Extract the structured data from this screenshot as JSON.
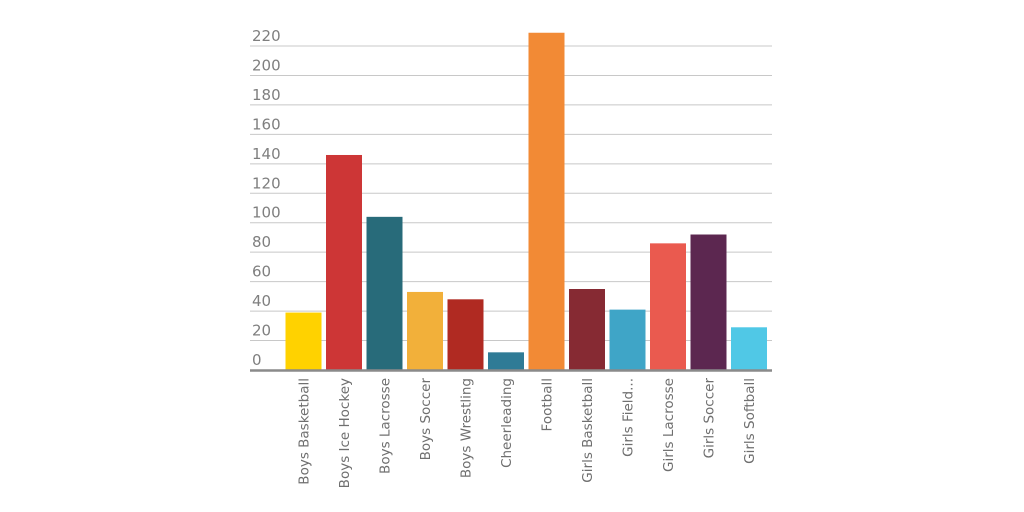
{
  "chart_data": {
    "type": "bar",
    "title": "",
    "xlabel": "",
    "ylabel": "",
    "ylim": [
      0,
      220
    ],
    "yticks": [
      0,
      20,
      40,
      60,
      80,
      100,
      120,
      140,
      160,
      180,
      200,
      220
    ],
    "grid": true,
    "legend": "none",
    "categories": [
      "Boys Basketball",
      "Boys Ice Hockey",
      "Boys Lacrosse",
      "Boys Soccer",
      "Boys Wrestling",
      "Cheerleading",
      "Football",
      "Girls Basketball",
      "Girls Field...",
      "Girls Lacrosse",
      "Girls Soccer",
      "Girls Softball"
    ],
    "values": [
      39,
      146,
      104,
      53,
      48,
      12,
      229,
      55,
      41,
      86,
      92,
      29
    ],
    "colors": [
      "#ffd200",
      "#cd3636",
      "#286b7a",
      "#f2b03a",
      "#b02a22",
      "#2f7b96",
      "#f28a35",
      "#862a33",
      "#3fa5c7",
      "#ea5a4f",
      "#5c2750",
      "#50c8e6"
    ]
  }
}
